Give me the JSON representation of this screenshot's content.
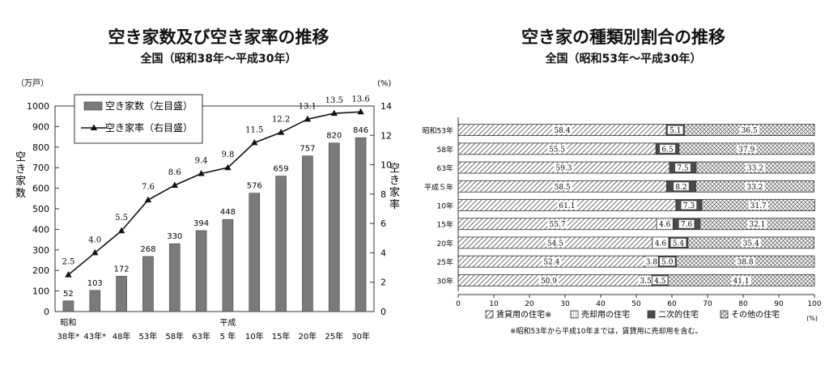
{
  "chart_data": [
    {
      "type": "bar",
      "title": "空き家数及び空き家率の推移",
      "subtitle": "全国（昭和38年～平成30年）",
      "categories": [
        "38年*",
        "43年*",
        "48年",
        "53年",
        "58年",
        "63年",
        "5 年",
        "10年",
        "15年",
        "20年",
        "25年",
        "30年"
      ],
      "era_labels": [
        {
          "index": 0,
          "text": "昭和"
        },
        {
          "index": 6,
          "text": "平成"
        }
      ],
      "y_left_unit": "（万戸）",
      "y_right_unit": "(%)",
      "ylabel_left": "空き家数",
      "ylabel_right": "空き家率",
      "ylim_left": [
        0,
        1000
      ],
      "ylim_right": [
        0,
        14
      ],
      "y_left_ticks": [
        0,
        100,
        200,
        300,
        400,
        500,
        600,
        700,
        800,
        900,
        1000
      ],
      "y_right_ticks": [
        0,
        2,
        4,
        6,
        8,
        10,
        12,
        14
      ],
      "series": [
        {
          "name": "空き家数（左目盛）",
          "kind": "bar",
          "axis": "left",
          "color": "#7a7a7a",
          "values": [
            52,
            103,
            172,
            268,
            330,
            394,
            448,
            576,
            659,
            757,
            820,
            846
          ],
          "labels": [
            "52",
            "103",
            "172",
            "268",
            "330",
            "394",
            "448",
            "576",
            "659",
            "757",
            "820",
            "846"
          ]
        },
        {
          "name": "空き家率（右目盛）",
          "kind": "line",
          "axis": "right",
          "color": "#111111",
          "values": [
            2.5,
            4.0,
            5.5,
            7.6,
            8.6,
            9.4,
            9.8,
            11.5,
            12.2,
            13.1,
            13.5,
            13.6
          ],
          "labels": [
            "2.5",
            "4.0",
            "5.5",
            "7.6",
            "8.6",
            "9.4",
            "9.8",
            "11.5",
            "12.2",
            "13.1",
            "13.5",
            "13.6"
          ]
        }
      ],
      "legend": "top-left"
    },
    {
      "type": "bar",
      "orientation": "horizontal",
      "stacked": true,
      "title": "空き家の種類別割合の推移",
      "subtitle": "全国（昭和53年～平成30年）",
      "categories": [
        "昭和53年",
        "58年",
        "63年",
        "平成５年",
        "10年",
        "15年",
        "20年",
        "25年",
        "30年"
      ],
      "xlim": [
        0,
        100
      ],
      "x_ticks": [
        0,
        10,
        20,
        30,
        40,
        50,
        60,
        70,
        80,
        90,
        100
      ],
      "x_unit": "(%)",
      "series": [
        {
          "name": "賃貸用の住宅※",
          "pattern": "diagonal",
          "values": [
            58.4,
            55.5,
            59.3,
            58.5,
            61.1,
            55.7,
            54.5,
            52.4,
            50.9
          ],
          "labels": [
            "58.4",
            "55.5",
            "59.3",
            "58.5",
            "61.1",
            "55.7",
            "54.5",
            "52.4",
            "50.9"
          ]
        },
        {
          "name": "売却用の住宅",
          "pattern": "dots",
          "values": [
            null,
            null,
            null,
            null,
            null,
            4.6,
            4.6,
            3.8,
            3.5
          ],
          "labels": [
            "",
            "",
            "",
            "",
            "",
            "4.6",
            "4.6",
            "3.8",
            "3.5"
          ]
        },
        {
          "name": "二次的住宅",
          "pattern": "dark",
          "values": [
            5.1,
            6.5,
            7.5,
            8.2,
            7.3,
            7.6,
            5.4,
            5.0,
            4.5
          ],
          "labels": [
            "5.1",
            "6.5",
            "7.5",
            "8.2",
            "7.3",
            "7.6",
            "5.4",
            "5.0",
            "4.5"
          ]
        },
        {
          "name": "その他の住宅",
          "pattern": "crosshatch",
          "values": [
            36.5,
            37.9,
            33.2,
            33.2,
            31.7,
            32.1,
            35.4,
            38.8,
            41.1
          ],
          "labels": [
            "36.5",
            "37.9",
            "33.2",
            "33.2",
            "31.7",
            "32.1",
            "35.4",
            "38.8",
            "41.1"
          ]
        }
      ],
      "note": "※昭和53年から平成10年までは，賃貸用に売却用を含む。",
      "legend": "bottom"
    }
  ]
}
